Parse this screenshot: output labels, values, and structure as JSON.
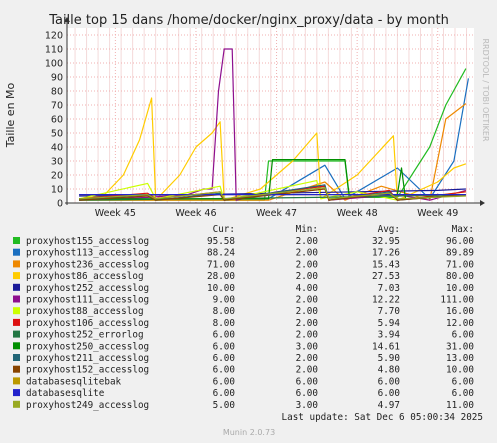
{
  "chart_data": {
    "type": "line",
    "title": "Taille top 15 dans /home/docker/nginx_proxy/data - by month",
    "ylabel": "Taille en Mo",
    "side_label": "RRDTOOL / TOBI OETIKER",
    "ylim": [
      0,
      125
    ],
    "yticks": [
      0,
      10,
      20,
      30,
      40,
      50,
      60,
      70,
      80,
      90,
      100,
      110,
      120
    ],
    "x_range": [
      44.4,
      49.45
    ],
    "xticks": [
      {
        "label": "Week 45",
        "pos": 45
      },
      {
        "label": "Week 46",
        "pos": 46
      },
      {
        "label": "Week 47",
        "pos": 47
      },
      {
        "label": "Week 48",
        "pos": 48
      },
      {
        "label": "Week 49",
        "pos": 49
      }
    ],
    "grid": true,
    "columns": [
      "Cur:",
      "Min:",
      "Avg:",
      "Max:"
    ],
    "series": [
      {
        "name": "proxyhost155_accesslog",
        "color": "#22bb22",
        "cur": "95.58",
        "min": "2.00",
        "avg": "32.95",
        "max": "96.00",
        "points": [
          [
            44.55,
            2
          ],
          [
            46.85,
            2
          ],
          [
            46.9,
            30
          ],
          [
            47.85,
            30
          ],
          [
            47.9,
            4
          ],
          [
            48.5,
            4
          ],
          [
            48.9,
            40
          ],
          [
            49.1,
            70
          ],
          [
            49.35,
            96
          ]
        ]
      },
      {
        "name": "proxyhost113_accesslog",
        "color": "#1a6fc0",
        "cur": "88.24",
        "min": "2.00",
        "avg": "17.26",
        "max": "89.89",
        "points": [
          [
            44.55,
            3
          ],
          [
            46.9,
            3
          ],
          [
            47.6,
            27
          ],
          [
            47.85,
            3
          ],
          [
            48.5,
            25
          ],
          [
            48.9,
            3
          ],
          [
            49.2,
            30
          ],
          [
            49.38,
            89
          ]
        ]
      },
      {
        "name": "proxyhost236_accesslog",
        "color": "#ee8800",
        "cur": "71.00",
        "min": "2.00",
        "avg": "15.43",
        "max": "71.00",
        "points": [
          [
            44.55,
            2
          ],
          [
            46.9,
            2
          ],
          [
            47.6,
            15
          ],
          [
            47.85,
            2
          ],
          [
            48.3,
            12
          ],
          [
            48.9,
            2
          ],
          [
            49.1,
            60
          ],
          [
            49.35,
            71
          ]
        ]
      },
      {
        "name": "proxyhost86_accesslog",
        "color": "#ffcc00",
        "cur": "28.00",
        "min": "2.00",
        "avg": "27.53",
        "max": "80.00",
        "points": [
          [
            44.55,
            3
          ],
          [
            44.85,
            5
          ],
          [
            45.1,
            20
          ],
          [
            45.3,
            45
          ],
          [
            45.45,
            75
          ],
          [
            45.5,
            2
          ],
          [
            45.8,
            20
          ],
          [
            46.0,
            40
          ],
          [
            46.2,
            50
          ],
          [
            46.3,
            58
          ],
          [
            46.35,
            2
          ],
          [
            46.8,
            10
          ],
          [
            47.2,
            30
          ],
          [
            47.5,
            50
          ],
          [
            47.55,
            3
          ],
          [
            48.0,
            20
          ],
          [
            48.45,
            48
          ],
          [
            48.5,
            2
          ],
          [
            49.0,
            15
          ],
          [
            49.2,
            25
          ],
          [
            49.35,
            28
          ]
        ]
      },
      {
        "name": "proxyhost252_accesslog",
        "color": "#1a1a99",
        "cur": "10.00",
        "min": "4.00",
        "avg": "7.03",
        "max": "10.00",
        "points": [
          [
            44.55,
            5
          ],
          [
            46.0,
            6
          ],
          [
            47.0,
            7
          ],
          [
            48.0,
            8
          ],
          [
            49.0,
            9
          ],
          [
            49.35,
            10
          ]
        ]
      },
      {
        "name": "proxyhost111_accesslog",
        "color": "#8e0f8e",
        "cur": "9.00",
        "min": "2.00",
        "avg": "12.22",
        "max": "111.00",
        "points": [
          [
            44.55,
            2
          ],
          [
            45.4,
            4
          ],
          [
            45.9,
            6
          ],
          [
            46.1,
            10
          ],
          [
            46.2,
            10
          ],
          [
            46.28,
            80
          ],
          [
            46.35,
            110
          ],
          [
            46.45,
            110
          ],
          [
            46.5,
            2
          ],
          [
            47.0,
            8
          ],
          [
            47.6,
            12
          ],
          [
            47.65,
            2
          ],
          [
            48.5,
            6
          ],
          [
            48.9,
            2
          ],
          [
            49.35,
            9
          ]
        ]
      },
      {
        "name": "proxyhost88_accesslog",
        "color": "#ccff00",
        "cur": "8.00",
        "min": "2.00",
        "avg": "7.70",
        "max": "16.00",
        "points": [
          [
            44.55,
            3
          ],
          [
            45.4,
            14
          ],
          [
            45.5,
            3
          ],
          [
            46.3,
            12
          ],
          [
            46.35,
            2
          ],
          [
            47.5,
            16
          ],
          [
            47.55,
            3
          ],
          [
            48.0,
            8
          ],
          [
            48.5,
            2
          ],
          [
            49.35,
            8
          ]
        ]
      },
      {
        "name": "proxyhost106_accesslog",
        "color": "#dd1111",
        "cur": "8.00",
        "min": "2.00",
        "avg": "5.94",
        "max": "12.00",
        "points": [
          [
            44.55,
            3
          ],
          [
            45.4,
            7
          ],
          [
            45.5,
            3
          ],
          [
            46.3,
            8
          ],
          [
            46.35,
            2
          ],
          [
            47.3,
            10
          ],
          [
            47.6,
            12
          ],
          [
            47.65,
            2
          ],
          [
            48.4,
            9
          ],
          [
            48.5,
            2
          ],
          [
            49.35,
            8
          ]
        ]
      },
      {
        "name": "proxyhost252_errorlog",
        "color": "#227744",
        "cur": "6.00",
        "min": "2.00",
        "avg": "3.94",
        "max": "6.00",
        "points": [
          [
            44.55,
            2
          ],
          [
            46.0,
            3
          ],
          [
            47.5,
            4
          ],
          [
            48.5,
            5
          ],
          [
            49.35,
            6
          ]
        ]
      },
      {
        "name": "proxyhost250_accesslog",
        "color": "#008f00",
        "cur": "6.00",
        "min": "3.00",
        "avg": "14.61",
        "max": "31.00",
        "points": [
          [
            44.55,
            3
          ],
          [
            46.9,
            3
          ],
          [
            46.95,
            31
          ],
          [
            47.3,
            31
          ],
          [
            47.5,
            31
          ],
          [
            47.85,
            31
          ],
          [
            47.9,
            6
          ],
          [
            48.5,
            6
          ],
          [
            48.55,
            25
          ],
          [
            48.6,
            3
          ],
          [
            49.35,
            6
          ]
        ]
      },
      {
        "name": "proxyhost211_accesslog",
        "color": "#226677",
        "cur": "6.00",
        "min": "2.00",
        "avg": "5.90",
        "max": "13.00",
        "points": [
          [
            44.55,
            2
          ],
          [
            45.4,
            6
          ],
          [
            45.5,
            2
          ],
          [
            46.3,
            7
          ],
          [
            46.35,
            2
          ],
          [
            47.6,
            13
          ],
          [
            47.65,
            2
          ],
          [
            48.4,
            8
          ],
          [
            48.5,
            2
          ],
          [
            49.35,
            6
          ]
        ]
      },
      {
        "name": "proxyhost152_accesslog",
        "color": "#884400",
        "cur": "6.00",
        "min": "2.00",
        "avg": "4.80",
        "max": "10.00",
        "points": [
          [
            44.55,
            2
          ],
          [
            45.4,
            5
          ],
          [
            45.5,
            2
          ],
          [
            46.3,
            6
          ],
          [
            46.35,
            2
          ],
          [
            47.6,
            10
          ],
          [
            47.65,
            2
          ],
          [
            48.4,
            7
          ],
          [
            48.5,
            2
          ],
          [
            49.35,
            6
          ]
        ]
      },
      {
        "name": "databasesqlitebak",
        "color": "#bb9900",
        "cur": "6.00",
        "min": "6.00",
        "avg": "6.00",
        "max": "6.00",
        "points": [
          [
            44.55,
            6
          ],
          [
            49.35,
            6
          ]
        ]
      },
      {
        "name": "databasesqlite",
        "color": "#2222cc",
        "cur": "6.00",
        "min": "6.00",
        "avg": "6.00",
        "max": "6.00",
        "points": [
          [
            44.55,
            6
          ],
          [
            49.35,
            6
          ]
        ]
      },
      {
        "name": "proxyhost249_accesslog",
        "color": "#99aa22",
        "cur": "5.00",
        "min": "3.00",
        "avg": "4.97",
        "max": "11.00",
        "points": [
          [
            44.55,
            3
          ],
          [
            45.4,
            6
          ],
          [
            45.5,
            3
          ],
          [
            46.3,
            8
          ],
          [
            46.35,
            3
          ],
          [
            47.6,
            11
          ],
          [
            47.65,
            3
          ],
          [
            48.4,
            7
          ],
          [
            48.5,
            3
          ],
          [
            49.35,
            5
          ]
        ]
      }
    ]
  },
  "footer": {
    "last_update": "Last update: Sat Dec  6 05:00:34 2025",
    "munin": "Munin 2.0.73"
  }
}
